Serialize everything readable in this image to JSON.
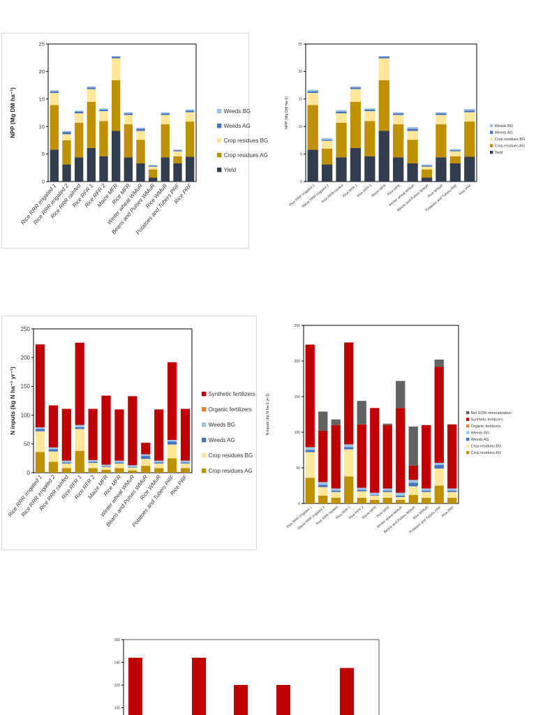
{
  "colors": {
    "yield": "#323e4f",
    "crop_residues_ag": "#bf9000",
    "crop_residues_bg": "#ffe699",
    "weeds_ag": "#4472c4",
    "weeds_bg": "#9dc3e6",
    "organic_fertilizers": "#ed7d31",
    "synthetic_fertilizers": "#c00000",
    "net_som_mineralization": "#636363"
  },
  "chart_data": [
    {
      "id": "npp-left",
      "type": "bar",
      "stacked": true,
      "title": "",
      "xlabel": "",
      "ylabel": "NPP (Mg DM ha⁻¹)",
      "ylim": [
        0,
        25
      ],
      "yticks": [
        0,
        5,
        10,
        15,
        20,
        25
      ],
      "grid": false,
      "legend_position": "right",
      "categories": [
        "Rice RRR irrigated 1",
        "Rice RRR irrigated 2",
        "Rice RRR rainfed",
        "Rice RFR 1",
        "Rice RFR 2",
        "Maize MFR",
        "Rice MFR",
        "Winter wheat WMuR",
        "Beans and Pulses WMuR",
        "Rice WMuR",
        "Potatoes and Tubers PRF",
        "Rice PRF"
      ],
      "series": [
        {
          "name": "Yield",
          "color_key": "yield",
          "values": [
            5.8,
            3.1,
            4.4,
            6.1,
            4.6,
            9.2,
            4.4,
            3.3,
            0.7,
            4.4,
            3.3,
            4.5
          ]
        },
        {
          "name": "Crop residues AG",
          "color_key": "crop_residues_ag",
          "values": [
            8.1,
            4.4,
            6.3,
            8.4,
            6.4,
            9.2,
            6.0,
            4.3,
            1.5,
            6.0,
            1.3,
            6.4
          ]
        },
        {
          "name": "Crop residues BG",
          "color_key": "crop_residues_bg",
          "values": [
            2.2,
            1.1,
            1.7,
            2.3,
            1.8,
            4.0,
            1.7,
            1.6,
            0.5,
            1.7,
            0.9,
            1.7
          ]
        },
        {
          "name": "Weeds AG",
          "color_key": "weeds_ag",
          "values": [
            0.3,
            0.4,
            0.3,
            0.3,
            0.3,
            0.3,
            0.3,
            0.4,
            0.2,
            0.3,
            0.2,
            0.3
          ]
        },
        {
          "name": "Weeds BG",
          "color_key": "weeds_bg",
          "values": [
            0.2,
            0.2,
            0.2,
            0.2,
            0.2,
            0.1,
            0.2,
            0.2,
            0.1,
            0.2,
            0.1,
            0.2
          ]
        }
      ],
      "legend": [
        "Weeds BG",
        "Weeds AG",
        "Crop residues BG",
        "Crop residues AG",
        "Yield"
      ]
    },
    {
      "id": "npp-right",
      "type": "bar",
      "stacked": true,
      "title": "",
      "xlabel": "",
      "ylabel": "NPP (Mg DM ha-1)",
      "ylim": [
        0,
        25
      ],
      "yticks": [
        0,
        5,
        10,
        15,
        20,
        25
      ],
      "grid": false,
      "legend_position": "right",
      "categories": [
        "Rice RRR irrigated 1",
        "Maize RRR irrigated 2",
        "Rice RRR rainfed",
        "Rice RFR 1",
        "Rice RFR 2",
        "Maize MFR",
        "Rice MFR",
        "Winter wheat WMuR",
        "Beans and Pulses WMuR",
        "Rice WMuR",
        "Potatoes and Tubers PRF",
        "Rice PRF"
      ],
      "series": [
        {
          "name": "Yield",
          "color_key": "yield",
          "values": [
            5.8,
            3.1,
            4.4,
            6.1,
            4.6,
            9.2,
            4.4,
            3.3,
            0.7,
            4.4,
            3.3,
            4.5
          ]
        },
        {
          "name": "Crop residues AG",
          "color_key": "crop_residues_ag",
          "values": [
            8.1,
            2.9,
            6.3,
            8.4,
            6.4,
            9.2,
            6.0,
            4.3,
            1.5,
            6.0,
            1.3,
            6.4
          ]
        },
        {
          "name": "Crop residues BG",
          "color_key": "crop_residues_bg",
          "values": [
            2.2,
            1.4,
            1.7,
            2.3,
            1.8,
            4.0,
            1.7,
            1.6,
            0.5,
            1.7,
            0.9,
            1.7
          ]
        },
        {
          "name": "Weeds AG",
          "color_key": "weeds_ag",
          "values": [
            0.3,
            0.2,
            0.3,
            0.3,
            0.3,
            0.3,
            0.3,
            0.4,
            0.2,
            0.3,
            0.2,
            0.3
          ]
        },
        {
          "name": "Weeds BG",
          "color_key": "weeds_bg",
          "values": [
            0.3,
            0.3,
            0.3,
            0.2,
            0.2,
            0.1,
            0.2,
            0.3,
            0.2,
            0.2,
            0.2,
            0.3
          ]
        }
      ],
      "legend": [
        "Weeds BG",
        "Weeds AG",
        "Crop residues BG",
        "Crop residues AG",
        "Yield"
      ]
    },
    {
      "id": "n-inputs-left",
      "type": "bar",
      "stacked": true,
      "title": "",
      "xlabel": "",
      "ylabel": "N inputs (kg N ha⁻¹  yr⁻¹)",
      "ylim": [
        0,
        250
      ],
      "yticks": [
        0,
        50,
        100,
        150,
        200,
        250
      ],
      "grid": false,
      "legend_position": "right",
      "categories": [
        "Rice RRR irrigated 1",
        "Rice RRR irrigated 2",
        "Rice RRR rainfed",
        "Rice RFR 1",
        "Rice RFR 2",
        "Maize MFR",
        "Rice MFR",
        "Winter wheat WMuR",
        "Beans and Pulses WMuR",
        "Rice WMuR",
        "Potatoes and Tubers PRF",
        "Rice PRF"
      ],
      "series": [
        {
          "name": "Crop residues AG",
          "color_key": "crop_residues_ag",
          "values": [
            36,
            19,
            8,
            38,
            8,
            5,
            8,
            4,
            12,
            8,
            25,
            8
          ]
        },
        {
          "name": "Crop residues BG",
          "color_key": "crop_residues_bg",
          "values": [
            36,
            18,
            8,
            38,
            9,
            5,
            8,
            5,
            12,
            8,
            24,
            8
          ]
        },
        {
          "name": "Weeds AG",
          "color_key": "weeds_ag",
          "values": [
            4,
            4,
            2,
            3,
            2,
            1,
            2,
            1,
            5,
            2,
            5,
            2
          ]
        },
        {
          "name": "Weeds BG",
          "color_key": "weeds_bg",
          "values": [
            3,
            3,
            3,
            4,
            3,
            3,
            3,
            3,
            3,
            3,
            3,
            3
          ]
        },
        {
          "name": "Organic fertilizers",
          "color_key": "organic_fertilizers",
          "values": [
            0,
            0,
            0,
            0,
            0,
            0,
            0,
            0,
            0,
            0,
            0,
            0
          ]
        },
        {
          "name": "Synthetic fertilizers",
          "color_key": "synthetic_fertilizers",
          "values": [
            144,
            73,
            90,
            143,
            89,
            120,
            89,
            120,
            20,
            89,
            135,
            90
          ]
        }
      ],
      "legend": [
        "Synthetic fertilizers",
        "Organic fertilizers",
        "Weeds BG",
        "Weeds AG",
        "Crop residues BG",
        "Crop residues AG"
      ]
    },
    {
      "id": "n-inputs-right",
      "type": "bar",
      "stacked": true,
      "title": "",
      "xlabel": "",
      "ylabel": "N inputs (kg N ha-1  yr-1)",
      "ylim": [
        0,
        250
      ],
      "yticks": [
        0,
        50,
        100,
        150,
        200,
        250
      ],
      "grid": false,
      "legend_position": "right",
      "categories": [
        "Rice RRR irrigated 1",
        "Maize RRR irrigated 2",
        "Rice RRR rainfed",
        "Rice RFR 1",
        "Rice RFR 2",
        "Maize MFR",
        "Rice MFR",
        "Winter wheat WMuR",
        "Beans and Pulses WMuR",
        "Rice WMuR",
        "Potatoes and Tubers PRF",
        "Rice PRF"
      ],
      "series": [
        {
          "name": "Crop residues AG",
          "color_key": "crop_residues_ag",
          "values": [
            36,
            11,
            8,
            38,
            8,
            5,
            8,
            5,
            12,
            8,
            25,
            8
          ]
        },
        {
          "name": "Crop residues BG",
          "color_key": "crop_residues_bg",
          "values": [
            36,
            12,
            8,
            38,
            9,
            6,
            8,
            4,
            12,
            8,
            24,
            8
          ]
        },
        {
          "name": "Weeds AG",
          "color_key": "weeds_ag",
          "values": [
            3,
            3,
            2,
            3,
            2,
            1,
            2,
            2,
            5,
            2,
            5,
            2
          ]
        },
        {
          "name": "Weeds BG",
          "color_key": "weeds_bg",
          "values": [
            4,
            4,
            3,
            4,
            3,
            3,
            3,
            4,
            4,
            3,
            3,
            3
          ]
        },
        {
          "name": "Organic fertilizers",
          "color_key": "organic_fertilizers",
          "values": [
            0,
            0,
            0,
            0,
            0,
            0,
            0,
            0,
            0,
            0,
            0,
            0
          ]
        },
        {
          "name": "Synthetic fertilizers",
          "color_key": "synthetic_fertilizers",
          "values": [
            144,
            72,
            89,
            143,
            89,
            119,
            89,
            119,
            20,
            89,
            135,
            90
          ]
        },
        {
          "name": "Net SOM mineralization",
          "color_key": "net_som_mineralization",
          "values": [
            0,
            27,
            8,
            0,
            33,
            0,
            2,
            38,
            55,
            0,
            10,
            0
          ]
        }
      ],
      "legend": [
        "Net SOM mineralization",
        "Synthetic fertilizers",
        "Organic fertilizers",
        "Weeds BG",
        "Weeds AG",
        "Crop residues BG",
        "Crop residues AG"
      ]
    },
    {
      "id": "bottom-partial",
      "type": "bar",
      "stacked": false,
      "title": "",
      "xlabel": "",
      "ylabel": "",
      "ylim": [
        null,
        160
      ],
      "yticks": [
        100,
        120,
        140,
        160
      ],
      "grid": false,
      "legend_position": "none",
      "categories": [
        "",
        "",
        "",
        "",
        ""
      ],
      "series": [
        {
          "name": "Synthetic fertilizers",
          "color_key": "synthetic_fertilizers",
          "values": [
            144,
            144,
            120,
            120,
            135
          ]
        }
      ],
      "legend": []
    }
  ]
}
